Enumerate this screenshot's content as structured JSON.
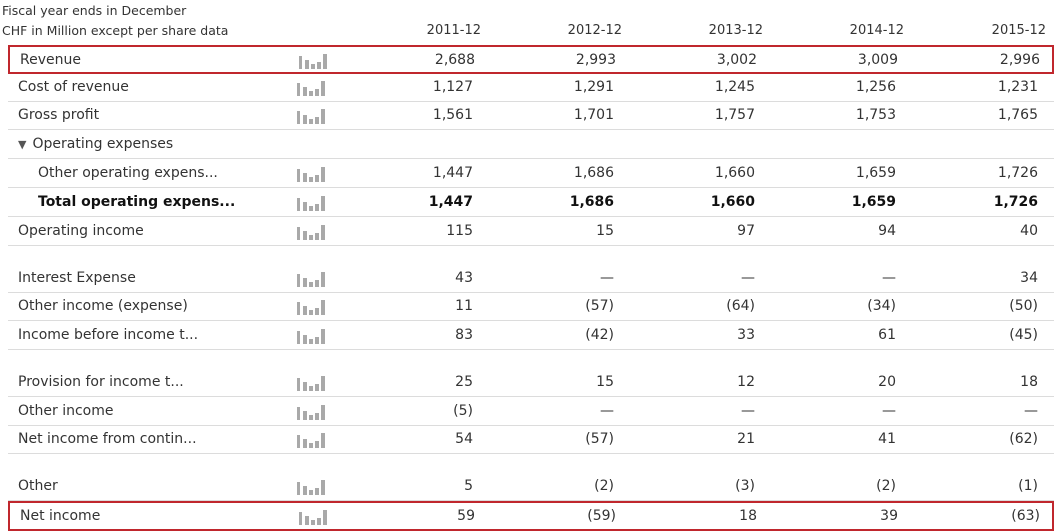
{
  "header": {
    "fiscal_note": "Fiscal year ends in December",
    "unit_note": "CHF in Million except per share data",
    "years": [
      "2011-12",
      "2012-12",
      "2013-12",
      "2014-12",
      "2015-12"
    ]
  },
  "rows": [
    {
      "label": "Revenue",
      "values": [
        "2,688",
        "2,993",
        "3,002",
        "3,009",
        "2,996"
      ]
    },
    {
      "label": "Cost of revenue",
      "values": [
        "1,127",
        "1,291",
        "1,245",
        "1,256",
        "1,231"
      ]
    },
    {
      "label": "Gross profit",
      "values": [
        "1,561",
        "1,701",
        "1,757",
        "1,753",
        "1,765"
      ]
    },
    {
      "label": "Operating expenses",
      "triangle": "▼"
    },
    {
      "label": "Other operating expens...",
      "values": [
        "1,447",
        "1,686",
        "1,660",
        "1,659",
        "1,726"
      ]
    },
    {
      "label": "Total operating expens...",
      "values": [
        "1,447",
        "1,686",
        "1,660",
        "1,659",
        "1,726"
      ]
    },
    {
      "label": "Operating income",
      "values": [
        "115",
        "15",
        "97",
        "94",
        "40"
      ]
    },
    {
      "label": "Interest Expense",
      "values": [
        "43",
        "—",
        "—",
        "—",
        "34"
      ]
    },
    {
      "label": "Other income (expense)",
      "values": [
        "11",
        "(57)",
        "(64)",
        "(34)",
        "(50)"
      ]
    },
    {
      "label": "Income before income t...",
      "values": [
        "83",
        "(42)",
        "33",
        "61",
        "(45)"
      ]
    },
    {
      "label": "Provision for income t...",
      "values": [
        "25",
        "15",
        "12",
        "20",
        "18"
      ]
    },
    {
      "label": "Other income",
      "values": [
        "(5)",
        "—",
        "—",
        "—",
        "—"
      ]
    },
    {
      "label": "Net income from contin...",
      "values": [
        "54",
        "(57)",
        "21",
        "41",
        "(62)"
      ]
    },
    {
      "label": "Other",
      "values": [
        "5",
        "(2)",
        "(3)",
        "(2)",
        "(1)"
      ]
    },
    {
      "label": "Net income",
      "values": [
        "59",
        "(59)",
        "18",
        "39",
        "(63)"
      ]
    }
  ],
  "icons": {
    "chart": "bar-chart-icon",
    "expand": "triangle-down-icon"
  },
  "colors": {
    "highlight_border": "#c0272d",
    "chart_icon": "#a9a9a9",
    "divider": "#dcdcdc"
  }
}
